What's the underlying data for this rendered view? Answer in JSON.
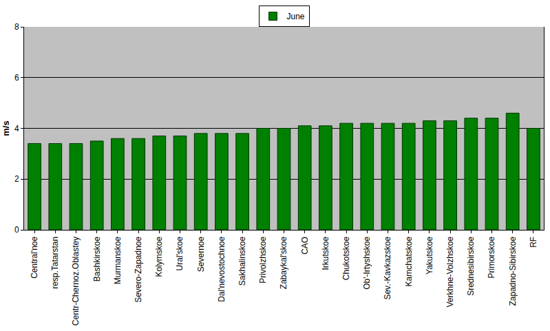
{
  "chart_data": {
    "type": "bar",
    "y_label": "m/s",
    "categories": [
      "Central'noe",
      "resp.Tatarstan",
      "Centr-Chernoz.Oblastey",
      "Bashkirskoe",
      "Murmanskoe",
      "Severo-Zapadnoe",
      "Kolymskoe",
      "Ural'skoe",
      "Severnoe",
      "Dal'nevostochnoe",
      "Sakhalinskoe",
      "Privolzhskoe",
      "Zabaykal'skoe",
      "CAO",
      "Irkutskoe",
      "Chukotskoe",
      "Ob'-Irtyshskoe",
      "Sev.-Kavkazskoe",
      "Kamchatskoe",
      "Yakutskoe",
      "Verkhne-Volzhskoe",
      "Srednesibirskoe",
      "Primorskoe",
      "Zapadno-Sibirskoe",
      "RF"
    ],
    "series": [
      {
        "name": "June",
        "color": "#008000",
        "values": [
          3.4,
          3.4,
          3.4,
          3.5,
          3.6,
          3.6,
          3.7,
          3.7,
          3.8,
          3.8,
          3.8,
          4.0,
          4.0,
          4.1,
          4.1,
          4.2,
          4.2,
          4.2,
          4.2,
          4.3,
          4.3,
          4.4,
          4.4,
          4.6,
          4.0
        ]
      }
    ],
    "ylim": [
      0,
      8
    ],
    "yticks": [
      0,
      2,
      4,
      6,
      8
    ],
    "grid": true,
    "legend": "top"
  }
}
